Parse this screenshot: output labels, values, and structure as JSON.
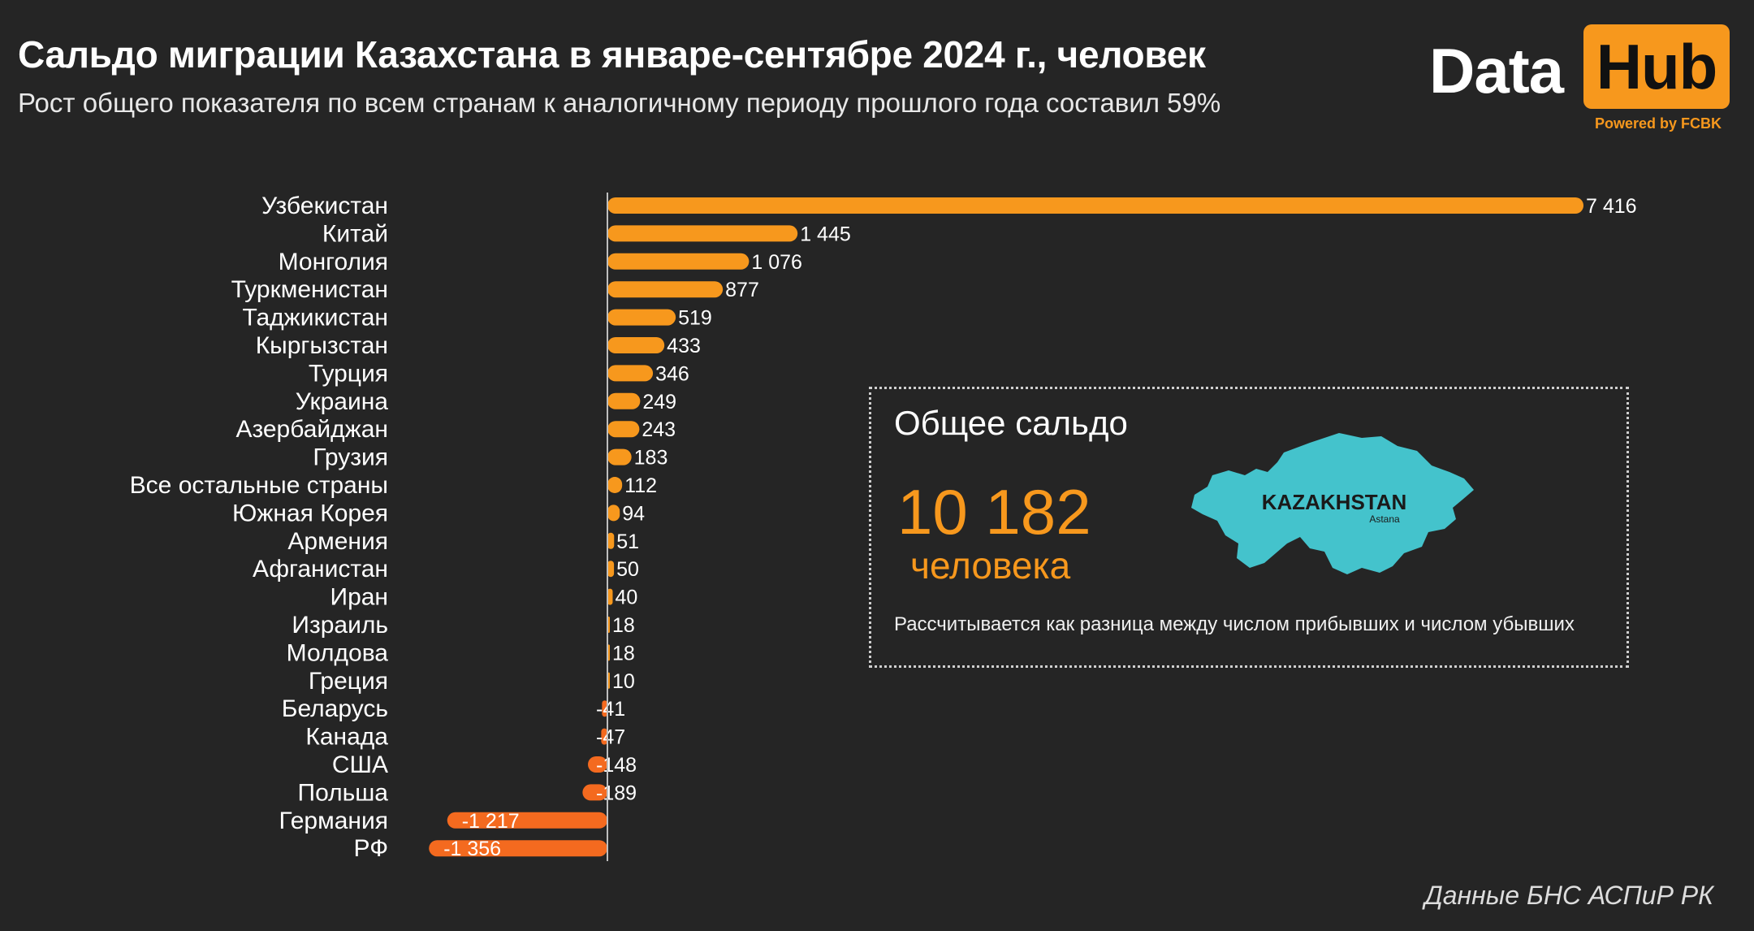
{
  "header": {
    "title": "Сальдо миграции Казахстана в январе-сентябре 2024 г., человек",
    "subtitle": "Рост общего показателя по всем странам к аналогичному периоду прошлого года составил 59%"
  },
  "logo": {
    "data_text": "Data",
    "hub_text": "Hub",
    "powered_text": "Powered by FCBK"
  },
  "colors": {
    "positive_bar": "#f7981d",
    "negative_bar": "#f46a1f",
    "background": "#252525",
    "map_fill": "#44c3cc"
  },
  "chart_data": {
    "type": "bar",
    "orientation": "horizontal",
    "categories": [
      "Узбекистан",
      "Китай",
      "Монголия",
      "Туркменистан",
      "Таджикистан",
      "Кыргызстан",
      "Турция",
      "Украина",
      "Азербайджан",
      "Грузия",
      "Все остальные страны",
      "Южная Корея",
      "Армения",
      "Афганистан",
      "Иран",
      "Израиль",
      "Молдова",
      "Греция",
      "Беларусь",
      "Канада",
      "США",
      "Польша",
      "Германия",
      "РФ"
    ],
    "values": [
      7416,
      1445,
      1076,
      877,
      519,
      433,
      346,
      249,
      243,
      183,
      112,
      94,
      51,
      50,
      40,
      18,
      18,
      10,
      -41,
      -47,
      -148,
      -189,
      -1217,
      -1356
    ],
    "value_labels": [
      "7 416",
      "1 445",
      "1 076",
      "877",
      "519",
      "433",
      "346",
      "249",
      "243",
      "183",
      "112",
      "94",
      "51",
      "50",
      "40",
      "18",
      "18",
      "10",
      "-41",
      "-47",
      "-148",
      "-189",
      "-1 217",
      "-1 356"
    ],
    "xlim": [
      -1356,
      7416
    ],
    "grid": false,
    "legend": "none"
  },
  "info_box": {
    "title": "Общее сальдо",
    "value": "10 182",
    "unit": "человека",
    "note": "Рассчитывается как разница между числом прибывших и числом убывших",
    "map_label": "KAZAKHSTAN",
    "map_sublabel": "Astana"
  },
  "footer": {
    "source": "Данные БНС АСПиР РК"
  }
}
